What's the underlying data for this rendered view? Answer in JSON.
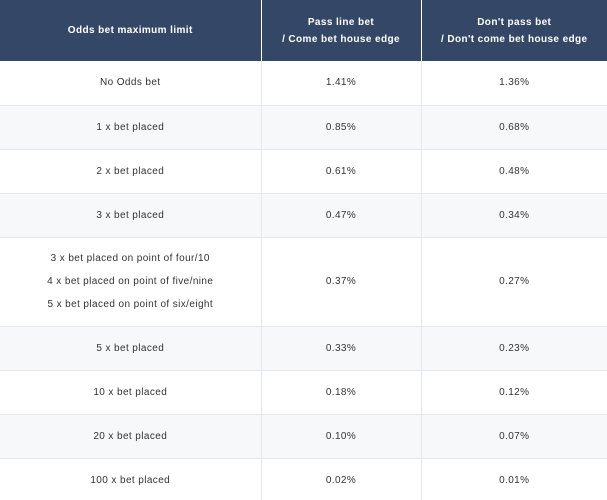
{
  "header": {
    "col1": [
      "Odds bet maximum limit"
    ],
    "col2": [
      "Pass line bet",
      "/ Come bet house edge"
    ],
    "col3": [
      "Don't pass bet",
      "/ Don't come bet house edge"
    ]
  },
  "rows": [
    {
      "label": [
        "No Odds bet"
      ],
      "pass": "1.41%",
      "dontpass": "1.36%"
    },
    {
      "label": [
        "1 x bet placed"
      ],
      "pass": "0.85%",
      "dontpass": "0.68%"
    },
    {
      "label": [
        "2 x bet placed"
      ],
      "pass": "0.61%",
      "dontpass": "0.48%"
    },
    {
      "label": [
        "3 x bet placed"
      ],
      "pass": "0.47%",
      "dontpass": "0.34%"
    },
    {
      "label": [
        "3 x bet placed on point of four/10",
        "4 x bet placed on point of five/nine",
        "5 x bet placed on point of six/eight"
      ],
      "pass": "0.37%",
      "dontpass": "0.27%"
    },
    {
      "label": [
        "5 x bet placed"
      ],
      "pass": "0.33%",
      "dontpass": "0.23%"
    },
    {
      "label": [
        "10 x bet placed"
      ],
      "pass": "0.18%",
      "dontpass": "0.12%"
    },
    {
      "label": [
        "20 x bet placed"
      ],
      "pass": "0.10%",
      "dontpass": "0.07%"
    },
    {
      "label": [
        "100 x bet placed"
      ],
      "pass": "0.02%",
      "dontpass": "0.01%"
    }
  ]
}
